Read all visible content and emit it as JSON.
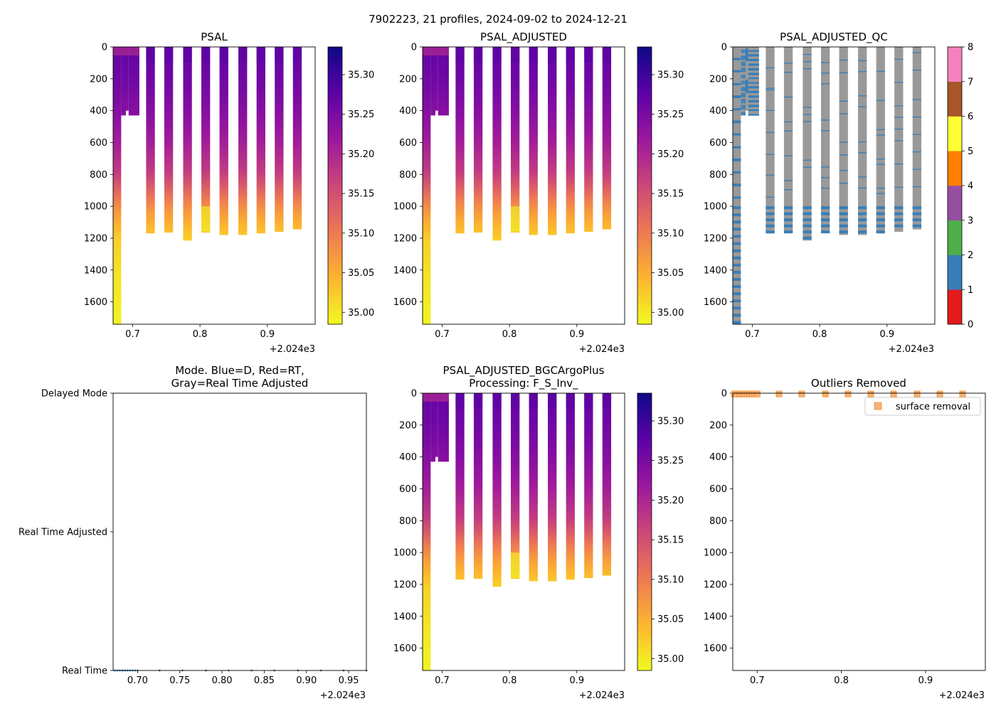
{
  "figure": {
    "suptitle": "7902223, 21 profiles, 2024-09-02 to 2024-12-21",
    "x_offset_label": "+2.024e3"
  },
  "colors": {
    "qc_gray": "#999999",
    "qc_blue": "#377eb8",
    "mode_blue": "#1f77b4",
    "outlier_orange": "#f28e2b",
    "outlier_fill": "#f7b27a"
  },
  "chart_data": [
    {
      "id": "psal",
      "type": "heatmap",
      "title": "PSAL",
      "x_ticks": [
        "0.7",
        "0.8",
        "0.9"
      ],
      "x_tick_values": [
        0.7,
        0.8,
        0.9
      ],
      "xlim": [
        0.671,
        0.971
      ],
      "y_ticks": [
        "0",
        "200",
        "400",
        "600",
        "800",
        "1000",
        "1200",
        "1400",
        "1600"
      ],
      "y_tick_values": [
        0,
        200,
        400,
        600,
        800,
        1000,
        1200,
        1400,
        1600
      ],
      "ylim": [
        1740,
        0
      ],
      "colorbar": {
        "cmap": "plasma_r",
        "range": [
          34.985,
          35.335
        ],
        "ticks": [
          "35.00",
          "35.05",
          "35.10",
          "35.15",
          "35.20",
          "35.25",
          "35.30"
        ],
        "tick_values": [
          35.0,
          35.05,
          35.1,
          35.15,
          35.2,
          35.25,
          35.3
        ]
      }
    },
    {
      "id": "psal_adj",
      "type": "heatmap",
      "title": "PSAL_ADJUSTED",
      "x_ticks": [
        "0.7",
        "0.8",
        "0.9"
      ],
      "x_tick_values": [
        0.7,
        0.8,
        0.9
      ],
      "xlim": [
        0.671,
        0.971
      ],
      "y_ticks": [
        "0",
        "200",
        "400",
        "600",
        "800",
        "1000",
        "1200",
        "1400",
        "1600"
      ],
      "y_tick_values": [
        0,
        200,
        400,
        600,
        800,
        1000,
        1200,
        1400,
        1600
      ],
      "ylim": [
        1740,
        0
      ],
      "colorbar": {
        "cmap": "plasma_r",
        "range": [
          34.985,
          35.335
        ],
        "ticks": [
          "35.00",
          "35.05",
          "35.10",
          "35.15",
          "35.20",
          "35.25",
          "35.30"
        ],
        "tick_values": [
          35.0,
          35.05,
          35.1,
          35.15,
          35.2,
          35.25,
          35.3
        ]
      }
    },
    {
      "id": "psal_qc",
      "type": "heatmap",
      "title": "PSAL_ADJUSTED_QC",
      "x_ticks": [
        "0.7",
        "0.8",
        "0.9"
      ],
      "x_tick_values": [
        0.7,
        0.8,
        0.9
      ],
      "xlim": [
        0.671,
        0.971
      ],
      "y_ticks": [
        "0",
        "200",
        "400",
        "600",
        "800",
        "1000",
        "1200",
        "1400",
        "1600"
      ],
      "y_tick_values": [
        0,
        200,
        400,
        600,
        800,
        1000,
        1200,
        1400,
        1600
      ],
      "ylim": [
        1740,
        0
      ],
      "colorbar": {
        "cmap": "qc",
        "range": [
          0,
          8
        ],
        "ticks": [
          "0",
          "1",
          "2",
          "3",
          "4",
          "5",
          "6",
          "7",
          "8"
        ],
        "tick_values": [
          0,
          1,
          2,
          3,
          4,
          5,
          6,
          7,
          8
        ],
        "segment_colors": [
          "#e41a1c",
          "#377eb8",
          "#4daf4a",
          "#984ea3",
          "#ff7f00",
          "#ffff33",
          "#a65628",
          "#f781bf"
        ]
      }
    },
    {
      "id": "mode",
      "type": "scatter",
      "title": "Mode. Blue=D, Red=RT,",
      "title_line2": "Gray=Real Time Adjusted",
      "x_ticks": [
        "0.70",
        "0.75",
        "0.80",
        "0.85",
        "0.90",
        "0.95"
      ],
      "x_tick_values": [
        0.7,
        0.75,
        0.8,
        0.85,
        0.9,
        0.95
      ],
      "xlim": [
        0.671,
        0.971
      ],
      "y_ticks": [
        "Delayed Mode",
        "Real Time Adjusted",
        "Real Time"
      ],
      "y_tick_values": [
        2,
        1,
        0
      ],
      "ylim": [
        0,
        2
      ],
      "points_x": [
        0.673,
        0.676,
        0.679,
        0.682,
        0.685,
        0.688,
        0.691,
        0.694,
        0.697,
        0.7,
        0.726,
        0.753,
        0.781,
        0.808,
        0.835,
        0.862,
        0.89,
        0.917,
        0.944,
        0.971
      ],
      "points_y_value": 0
    },
    {
      "id": "psal_bgc",
      "type": "heatmap",
      "title": "PSAL_ADJUSTED_BGCArgoPlus",
      "title_line2": "Processing: F_S_Inv_",
      "x_ticks": [
        "0.7",
        "0.8",
        "0.9"
      ],
      "x_tick_values": [
        0.7,
        0.8,
        0.9
      ],
      "xlim": [
        0.671,
        0.971
      ],
      "y_ticks": [
        "0",
        "200",
        "400",
        "600",
        "800",
        "1000",
        "1200",
        "1400",
        "1600"
      ],
      "y_tick_values": [
        0,
        200,
        400,
        600,
        800,
        1000,
        1200,
        1400,
        1600
      ],
      "ylim": [
        1740,
        0
      ],
      "colorbar": {
        "cmap": "plasma_r",
        "range": [
          34.985,
          35.335
        ],
        "ticks": [
          "35.00",
          "35.05",
          "35.10",
          "35.15",
          "35.20",
          "35.25",
          "35.30"
        ],
        "tick_values": [
          35.0,
          35.05,
          35.1,
          35.15,
          35.2,
          35.25,
          35.3
        ]
      }
    },
    {
      "id": "outliers",
      "type": "scatter",
      "title": "Outliers Removed",
      "legend_label": "surface removal",
      "x_ticks": [
        "0.7",
        "0.8",
        "0.9"
      ],
      "x_tick_values": [
        0.7,
        0.8,
        0.9
      ],
      "xlim": [
        0.671,
        0.971
      ],
      "y_ticks": [
        "0",
        "200",
        "400",
        "600",
        "800",
        "1000",
        "1200",
        "1400",
        "1600"
      ],
      "y_tick_values": [
        0,
        200,
        400,
        600,
        800,
        1000,
        1200,
        1400,
        1600
      ],
      "ylim": [
        1740,
        0
      ],
      "points_x": [
        0.673,
        0.676,
        0.679,
        0.682,
        0.685,
        0.688,
        0.691,
        0.694,
        0.697,
        0.7,
        0.726,
        0.753,
        0.781,
        0.808,
        0.835,
        0.862,
        0.89,
        0.917,
        0.944
      ],
      "points_depth": [
        0,
        10
      ]
    }
  ],
  "profiles": [
    {
      "x0": 0.671,
      "x1": 0.683,
      "maxdepth": 1740
    },
    {
      "x0": 0.683,
      "x1": 0.69,
      "maxdepth": 430
    },
    {
      "x0": 0.69,
      "x1": 0.694,
      "maxdepth": 400
    },
    {
      "x0": 0.694,
      "x1": 0.71,
      "maxdepth": 430
    },
    {
      "x0": 0.72,
      "x1": 0.733,
      "maxdepth": 1170
    },
    {
      "x0": 0.747,
      "x1": 0.76,
      "maxdepth": 1165
    },
    {
      "x0": 0.775,
      "x1": 0.788,
      "maxdepth": 1215
    },
    {
      "x0": 0.802,
      "x1": 0.815,
      "maxdepth": 1165
    },
    {
      "x0": 0.829,
      "x1": 0.842,
      "maxdepth": 1180
    },
    {
      "x0": 0.857,
      "x1": 0.87,
      "maxdepth": 1180
    },
    {
      "x0": 0.884,
      "x1": 0.897,
      "maxdepth": 1170
    },
    {
      "x0": 0.911,
      "x1": 0.924,
      "maxdepth": 1160
    },
    {
      "x0": 0.938,
      "x1": 0.951,
      "maxdepth": 1145
    }
  ]
}
